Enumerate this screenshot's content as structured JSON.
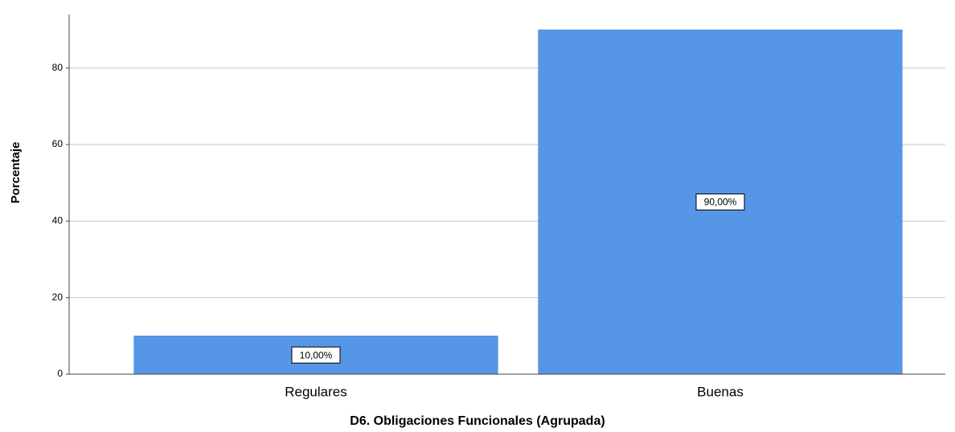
{
  "chart_data": {
    "type": "bar",
    "categories": [
      "Regulares",
      "Buenas"
    ],
    "values": [
      10,
      90
    ],
    "value_labels": [
      "10,00%",
      "90,00%"
    ],
    "color": "#5596e6",
    "ylim": [
      0,
      94
    ],
    "yticks": [
      0,
      20,
      40,
      60,
      80
    ],
    "grid": true,
    "y_label": "Porcentaje",
    "x_label": "D6. Obligaciones Funcionales (Agrupada)"
  }
}
